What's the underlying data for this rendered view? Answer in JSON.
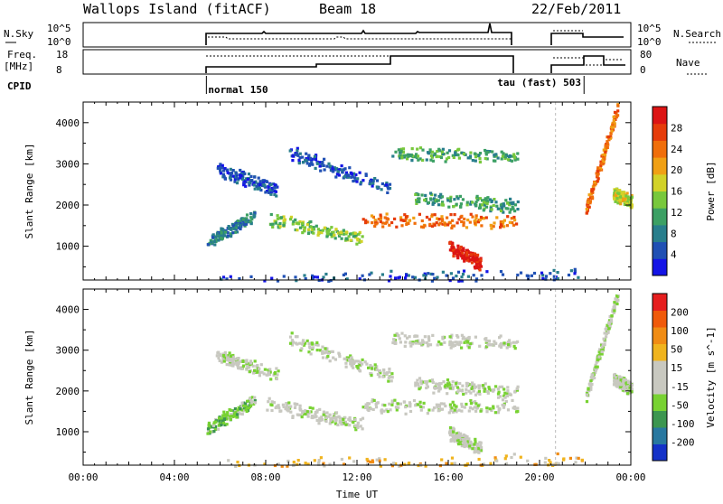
{
  "header": {
    "station": "Wallops Island (fitACF)",
    "beam": "Beam 18",
    "date": "22/Feb/2011"
  },
  "top_panels": {
    "nsky_label": "N.Sky",
    "nsky_ticks": [
      "10^5",
      "10^0"
    ],
    "nsearch_label": "N.Search",
    "freq_label": "Freq.",
    "freq_unit": "[MHz]",
    "freq_ticks": [
      "18",
      "8"
    ],
    "nave_label": "Nave",
    "nave_ticks": [
      "80",
      "0"
    ],
    "cpid_label": "CPID",
    "cpid_modes": [
      {
        "label": "normal 150",
        "start_hour": 5.4
      },
      {
        "label": "tau (fast) 503",
        "start_hour": 21.95
      }
    ]
  },
  "chart_data": [
    {
      "type": "heatmap",
      "name": "power",
      "ylabel": "Slant Range [km]",
      "xlabel": "Time UT",
      "x_range_hours": [
        0,
        24
      ],
      "ylim": [
        180,
        4500
      ],
      "x_ticks": [
        "00:00",
        "04:00",
        "08:00",
        "12:00",
        "16:00",
        "20:00",
        "00:00"
      ],
      "y_ticks": [
        1000,
        2000,
        3000,
        4000
      ],
      "colorbar": {
        "label": "Power [dB]",
        "ticks": [
          "4",
          "8",
          "12",
          "16",
          "20",
          "24",
          "28"
        ],
        "colors": [
          "#1414e6",
          "#2050b4",
          "#287e8c",
          "#3ca064",
          "#78c83c",
          "#d2d228",
          "#f0a014",
          "#f06e0a",
          "#e63c0a",
          "#dc1414"
        ]
      },
      "features": [
        {
          "t0": 5.4,
          "t1": 7.5,
          "r0": 1100,
          "r1": 1800,
          "level": 2
        },
        {
          "t0": 5.5,
          "t1": 22.0,
          "r0": 180,
          "r1": 330,
          "level": 1
        },
        {
          "t0": 8.0,
          "t1": 12.2,
          "r0": 1700,
          "r1": 1200,
          "level": 4
        },
        {
          "t0": 12.2,
          "t1": 19.0,
          "r0": 1650,
          "r1": 1650,
          "level": 7
        },
        {
          "t0": 16.0,
          "t1": 17.4,
          "r0": 1000,
          "r1": 600,
          "level": 9
        },
        {
          "t0": 9.0,
          "t1": 13.5,
          "r0": 3300,
          "r1": 2400,
          "level": 1
        },
        {
          "t0": 13.5,
          "t1": 19.0,
          "r0": 3300,
          "r1": 3200,
          "level": 3
        },
        {
          "t0": 14.5,
          "t1": 19.0,
          "r0": 2200,
          "r1": 2000,
          "level": 3
        },
        {
          "t0": 5.8,
          "t1": 8.5,
          "r0": 2900,
          "r1": 2400,
          "level": 1
        },
        {
          "t0": 22.0,
          "t1": 23.4,
          "r0": 1900,
          "r1": 4400,
          "level": 7
        },
        {
          "t0": 23.2,
          "t1": 24.0,
          "r0": 2300,
          "r1": 2100,
          "level": 5
        }
      ]
    },
    {
      "type": "heatmap",
      "name": "velocity",
      "ylabel": "Slant Range [km]",
      "xlabel": "Time UT",
      "x_range_hours": [
        0,
        24
      ],
      "ylim": [
        180,
        4500
      ],
      "x_ticks": [
        "00:00",
        "04:00",
        "08:00",
        "12:00",
        "16:00",
        "20:00",
        "00:00"
      ],
      "y_ticks": [
        1000,
        2000,
        3000,
        4000
      ],
      "colorbar": {
        "label": "Velocity [m s^-1]",
        "ticks": [
          "200",
          "100",
          "50",
          "15",
          "-15",
          "-50",
          "-100",
          "-200"
        ],
        "colors": [
          "#1432c8",
          "#2878a0",
          "#3c9650",
          "#78d232",
          "#c8c8c0",
          "#c8c8c0",
          "#f0b41e",
          "#f08c14",
          "#f05a0a",
          "#e61e1e"
        ]
      },
      "features": [
        {
          "t0": 5.4,
          "t1": 7.5,
          "r0": 1100,
          "r1": 1800,
          "level": 3
        },
        {
          "t0": 5.5,
          "t1": 22.0,
          "r0": 180,
          "r1": 330,
          "level": 6
        },
        {
          "t0": 8.0,
          "t1": 12.2,
          "r0": 1700,
          "r1": 1200,
          "level": 4
        },
        {
          "t0": 12.2,
          "t1": 19.0,
          "r0": 1650,
          "r1": 1650,
          "level": 4
        },
        {
          "t0": 16.0,
          "t1": 17.4,
          "r0": 1000,
          "r1": 600,
          "level": 4
        },
        {
          "t0": 9.0,
          "t1": 13.5,
          "r0": 3300,
          "r1": 2400,
          "level": 4
        },
        {
          "t0": 13.5,
          "t1": 19.0,
          "r0": 3300,
          "r1": 3200,
          "level": 4
        },
        {
          "t0": 14.5,
          "t1": 19.0,
          "r0": 2200,
          "r1": 2000,
          "level": 4
        },
        {
          "t0": 5.8,
          "t1": 8.5,
          "r0": 2900,
          "r1": 2400,
          "level": 4
        },
        {
          "t0": 22.0,
          "t1": 23.4,
          "r0": 1900,
          "r1": 4400,
          "level": 4
        },
        {
          "t0": 23.2,
          "t1": 24.0,
          "r0": 2300,
          "r1": 2100,
          "level": 4
        }
      ]
    }
  ]
}
